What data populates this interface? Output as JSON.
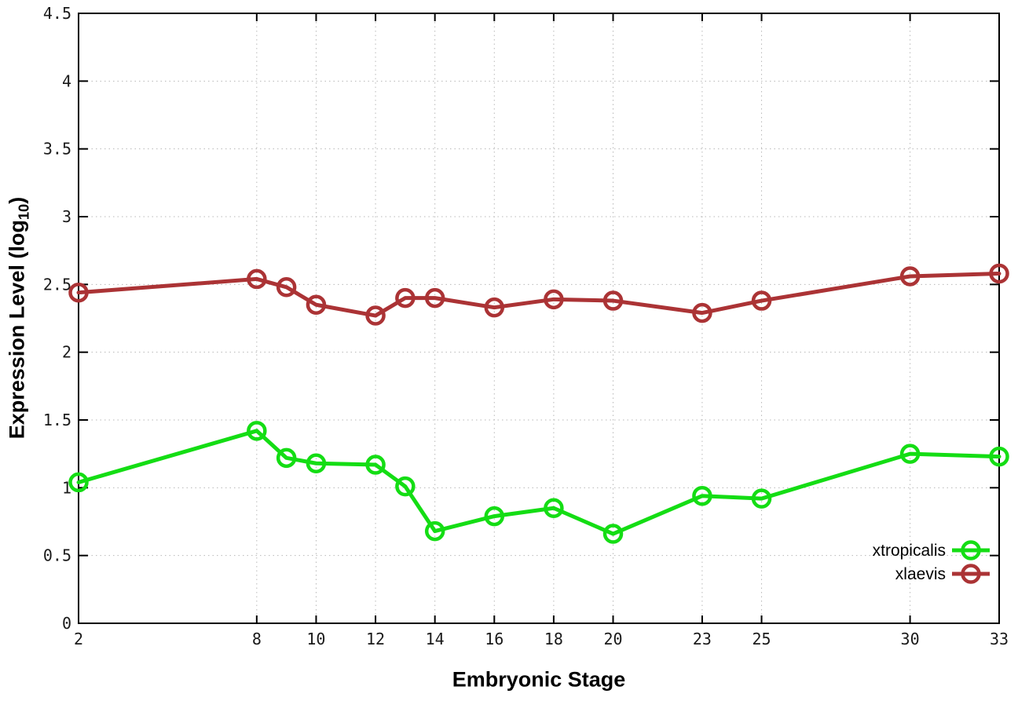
{
  "chart_data": {
    "type": "line",
    "title": "",
    "xlabel": "Embryonic Stage",
    "ylabel": "Expression Level (log10)",
    "ylabel_parts": {
      "pre": "Expression Level (log",
      "sub": "10",
      "post": ")"
    },
    "x": [
      2,
      8,
      9,
      10,
      12,
      13,
      14,
      16,
      18,
      20,
      23,
      25,
      30,
      33
    ],
    "xtick_labels": [
      2,
      8,
      10,
      12,
      14,
      16,
      18,
      20,
      23,
      25,
      30,
      33
    ],
    "xlim": [
      2,
      33
    ],
    "ylim": [
      0,
      4.5
    ],
    "ytick_step": 0.5,
    "grid": true,
    "grid_style": "dotted",
    "legend_position": "bottom-right",
    "series": [
      {
        "name": "xtropicalis",
        "color": "#14dd14",
        "values": [
          1.04,
          1.42,
          1.22,
          1.18,
          1.17,
          1.01,
          0.68,
          0.79,
          0.85,
          0.66,
          0.94,
          0.92,
          1.25,
          1.23
        ]
      },
      {
        "name": "xlaevis",
        "color": "#ab3335",
        "values": [
          2.44,
          2.54,
          2.48,
          2.35,
          2.27,
          2.4,
          2.4,
          2.33,
          2.39,
          2.38,
          2.29,
          2.38,
          2.56,
          2.58
        ]
      }
    ],
    "colors": {
      "border": "#000000",
      "grid": "#b8b8b8",
      "tick_text": "#1a1a1a"
    }
  }
}
